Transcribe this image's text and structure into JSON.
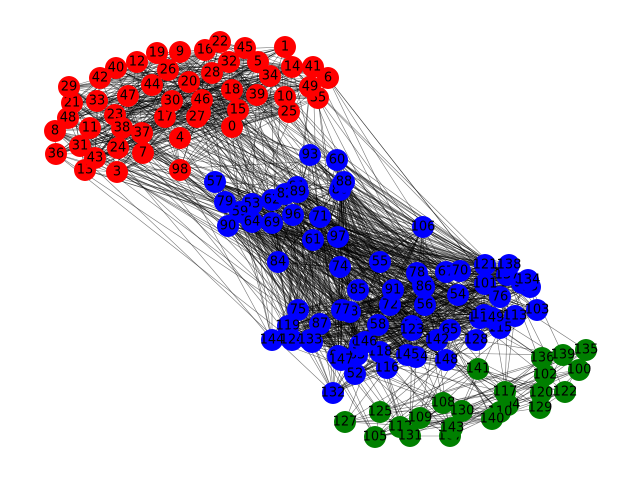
{
  "graph": {
    "colors": {
      "red": "#ff0000",
      "blue": "#0000ff",
      "green": "#008000",
      "edge": "#000000"
    },
    "clusters": [
      {
        "color": "red",
        "labels": [
          "0",
          "1",
          "2",
          "3",
          "4",
          "5",
          "6",
          "7",
          "8",
          "9",
          "10",
          "11",
          "12",
          "13",
          "14",
          "15",
          "16",
          "17",
          "18",
          "19",
          "20",
          "21",
          "22",
          "23",
          "24",
          "25",
          "26",
          "27",
          "28",
          "29",
          "30",
          "31",
          "32",
          "33",
          "34",
          "35",
          "36",
          "37",
          "38",
          "39",
          "40",
          "41",
          "42",
          "43",
          "44",
          "45",
          "46",
          "47",
          "48",
          "49",
          "98"
        ]
      },
      {
        "color": "blue",
        "labels": [
          "50",
          "51",
          "52",
          "53",
          "54",
          "55",
          "56",
          "57",
          "58",
          "59",
          "60",
          "61",
          "62",
          "63",
          "64",
          "65",
          "66",
          "67",
          "68",
          "69",
          "70",
          "71",
          "72",
          "73",
          "74",
          "75",
          "76",
          "77",
          "78",
          "79",
          "80",
          "81",
          "82",
          "83",
          "84",
          "85",
          "86",
          "87",
          "88",
          "89",
          "90",
          "91",
          "92",
          "93",
          "94",
          "95",
          "96",
          "97",
          "99",
          "101",
          "103",
          "106",
          "111",
          "113",
          "114",
          "115",
          "116",
          "118",
          "119",
          "121",
          "123",
          "124",
          "126",
          "128",
          "132",
          "133",
          "134",
          "137",
          "138",
          "142",
          "144",
          "145",
          "146",
          "147",
          "148",
          "149"
        ]
      },
      {
        "color": "green",
        "labels": [
          "100",
          "102",
          "104",
          "105",
          "107",
          "108",
          "109",
          "110",
          "112",
          "117",
          "120",
          "122",
          "125",
          "127",
          "129",
          "130",
          "131",
          "135",
          "136",
          "139",
          "140",
          "141",
          "143"
        ]
      }
    ]
  }
}
